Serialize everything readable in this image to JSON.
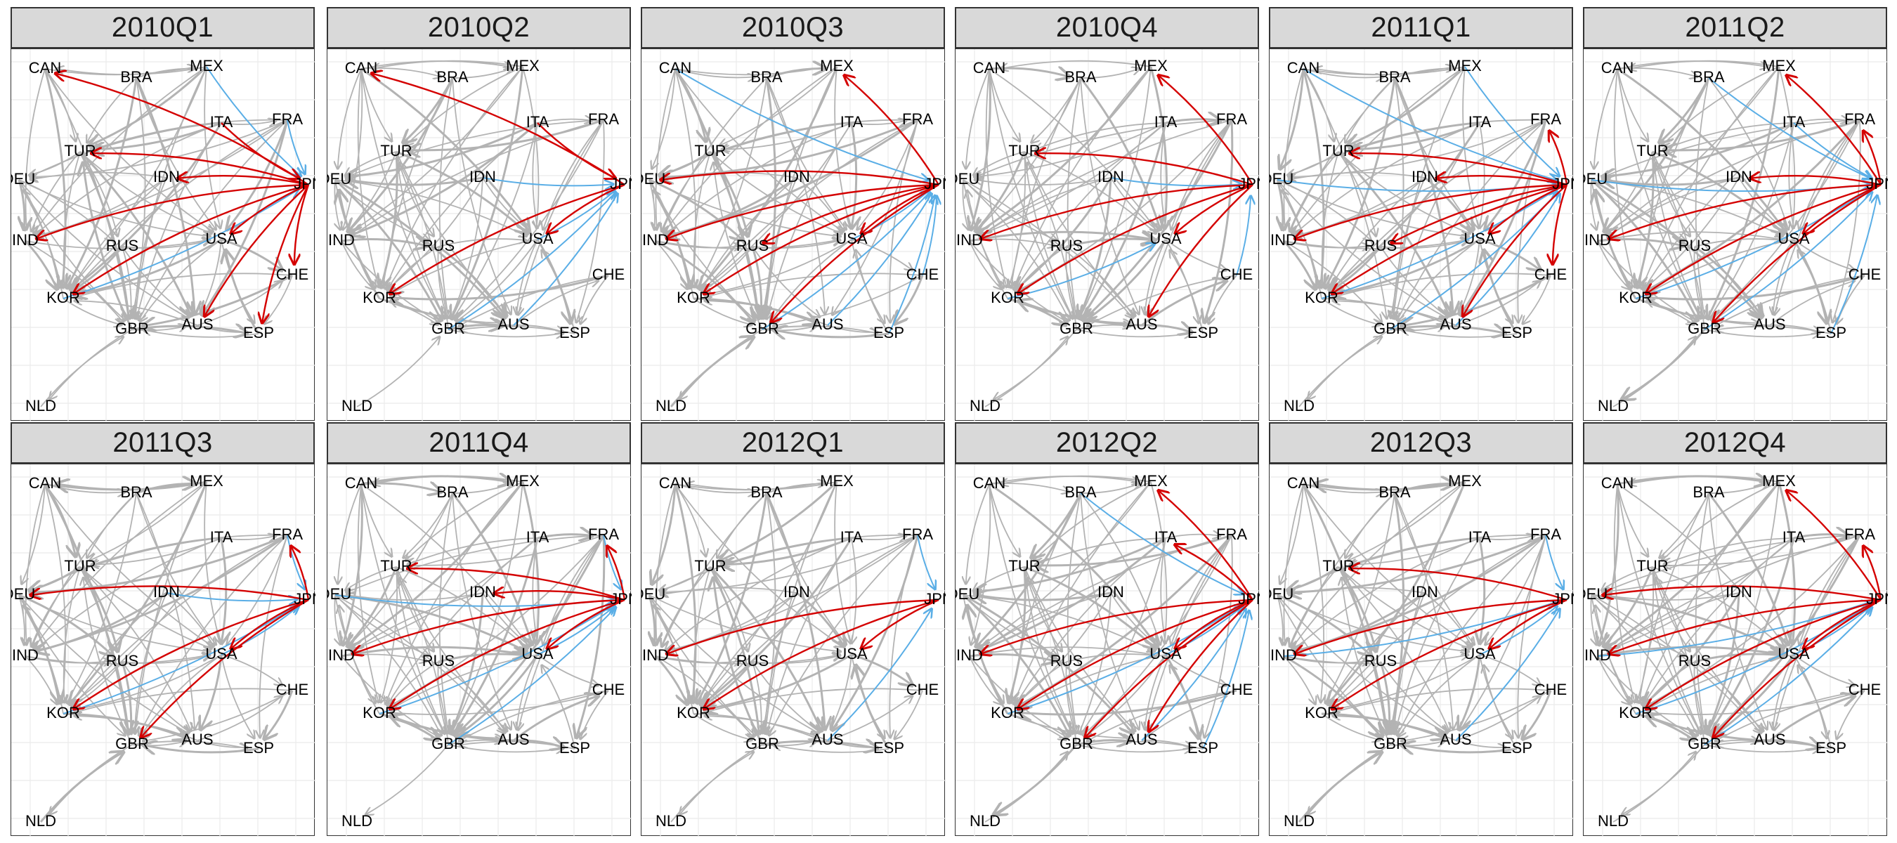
{
  "panels": [
    {
      "title": "2010Q1"
    },
    {
      "title": "2010Q2"
    },
    {
      "title": "2010Q3"
    },
    {
      "title": "2010Q4"
    },
    {
      "title": "2011Q1"
    },
    {
      "title": "2011Q2"
    },
    {
      "title": "2011Q3"
    },
    {
      "title": "2011Q4"
    },
    {
      "title": "2012Q1"
    },
    {
      "title": "2012Q2"
    },
    {
      "title": "2012Q3"
    },
    {
      "title": "2012Q4"
    }
  ],
  "nodes": [
    "CAN",
    "BRA",
    "MEX",
    "ITA",
    "FRA",
    "TUR",
    "IDN",
    "JPN",
    "DEU",
    "IND",
    "RUS",
    "USA",
    "CHE",
    "KOR",
    "GBR",
    "AUS",
    "ESP",
    "NLD"
  ],
  "colors": {
    "neutral_edge": "#b3b3b3",
    "positive_edge": "#d40000",
    "negative_edge": "#5aaee6",
    "grid": "#ebebeb",
    "header_bg": "#d9d9d9",
    "border": "#333333"
  },
  "chart_data": {
    "type": "network",
    "edge_categories": [
      "neutral",
      "red",
      "blue"
    ],
    "graphs": [
      {
        "panel": "2010Q1",
        "red": [
          [
            "JPN",
            "CAN"
          ],
          [
            "JPN",
            "TUR"
          ],
          [
            "JPN",
            "IND"
          ],
          [
            "JPN",
            "KOR"
          ],
          [
            "JPN",
            "AUS"
          ],
          [
            "JPN",
            "ESP"
          ],
          [
            "JPN",
            "CHE"
          ],
          [
            "JPN",
            "IDN"
          ],
          [
            "ITA",
            "JPN"
          ],
          [
            "JPN",
            "USA"
          ]
        ],
        "blue": [
          [
            "MEX",
            "JPN"
          ],
          [
            "KOR",
            "JPN"
          ],
          [
            "FRA",
            "JPN"
          ]
        ]
      },
      {
        "panel": "2010Q2",
        "red": [
          [
            "JPN",
            "CAN"
          ],
          [
            "JPN",
            "KOR"
          ],
          [
            "JPN",
            "USA"
          ],
          [
            "ITA",
            "JPN"
          ]
        ],
        "blue": [
          [
            "IDN",
            "JPN"
          ],
          [
            "GBR",
            "JPN"
          ],
          [
            "AUS",
            "JPN"
          ],
          [
            "USA",
            "JPN"
          ]
        ]
      },
      {
        "panel": "2010Q3",
        "red": [
          [
            "JPN",
            "MEX"
          ],
          [
            "JPN",
            "DEU"
          ],
          [
            "JPN",
            "IND"
          ],
          [
            "JPN",
            "KOR"
          ],
          [
            "JPN",
            "GBR"
          ],
          [
            "JPN",
            "USA"
          ],
          [
            "JPN",
            "RUS"
          ]
        ],
        "blue": [
          [
            "CAN",
            "JPN"
          ],
          [
            "USA",
            "JPN"
          ],
          [
            "AUS",
            "JPN"
          ],
          [
            "GBR",
            "JPN"
          ],
          [
            "ESP",
            "JPN"
          ],
          [
            "CHE",
            "JPN"
          ]
        ]
      },
      {
        "panel": "2010Q4",
        "red": [
          [
            "JPN",
            "MEX"
          ],
          [
            "JPN",
            "TUR"
          ],
          [
            "JPN",
            "IND"
          ],
          [
            "JPN",
            "KOR"
          ],
          [
            "JPN",
            "AUS"
          ],
          [
            "JPN",
            "USA"
          ]
        ],
        "blue": [
          [
            "IDN",
            "JPN"
          ],
          [
            "KOR",
            "USA"
          ],
          [
            "CHE",
            "JPN"
          ]
        ]
      },
      {
        "panel": "2011Q1",
        "red": [
          [
            "JPN",
            "FRA"
          ],
          [
            "JPN",
            "TUR"
          ],
          [
            "JPN",
            "IDN"
          ],
          [
            "JPN",
            "IND"
          ],
          [
            "JPN",
            "KOR"
          ],
          [
            "JPN",
            "USA"
          ],
          [
            "JPN",
            "AUS"
          ],
          [
            "JPN",
            "CHE"
          ],
          [
            "JPN",
            "RUS"
          ]
        ],
        "blue": [
          [
            "CAN",
            "JPN"
          ],
          [
            "MEX",
            "JPN"
          ],
          [
            "KOR",
            "JPN"
          ],
          [
            "GBR",
            "JPN"
          ],
          [
            "AUS",
            "JPN"
          ],
          [
            "DEU",
            "JPN"
          ]
        ]
      },
      {
        "panel": "2011Q2",
        "red": [
          [
            "JPN",
            "MEX"
          ],
          [
            "JPN",
            "FRA"
          ],
          [
            "JPN",
            "IDN"
          ],
          [
            "JPN",
            "IND"
          ],
          [
            "JPN",
            "KOR"
          ],
          [
            "JPN",
            "GBR"
          ],
          [
            "JPN",
            "USA"
          ]
        ],
        "blue": [
          [
            "BRA",
            "JPN"
          ],
          [
            "DEU",
            "JPN"
          ],
          [
            "GBR",
            "JPN"
          ],
          [
            "KOR",
            "JPN"
          ],
          [
            "ESP",
            "JPN"
          ],
          [
            "ITA",
            "JPN"
          ]
        ]
      },
      {
        "panel": "2011Q3",
        "red": [
          [
            "JPN",
            "FRA"
          ],
          [
            "JPN",
            "DEU"
          ],
          [
            "JPN",
            "KOR"
          ],
          [
            "JPN",
            "GBR"
          ],
          [
            "JPN",
            "USA"
          ]
        ],
        "blue": [
          [
            "FRA",
            "JPN"
          ],
          [
            "KOR",
            "JPN"
          ],
          [
            "USA",
            "JPN"
          ],
          [
            "IDN",
            "JPN"
          ]
        ]
      },
      {
        "panel": "2011Q4",
        "red": [
          [
            "JPN",
            "FRA"
          ],
          [
            "JPN",
            "TUR"
          ],
          [
            "JPN",
            "IND"
          ],
          [
            "JPN",
            "KOR"
          ],
          [
            "JPN",
            "USA"
          ],
          [
            "JPN",
            "IDN"
          ]
        ],
        "blue": [
          [
            "FRA",
            "JPN"
          ],
          [
            "DEU",
            "JPN"
          ],
          [
            "GBR",
            "JPN"
          ],
          [
            "USA",
            "JPN"
          ],
          [
            "KOR",
            "JPN"
          ]
        ]
      },
      {
        "panel": "2012Q1",
        "red": [
          [
            "JPN",
            "IND"
          ],
          [
            "JPN",
            "KOR"
          ],
          [
            "JPN",
            "USA"
          ]
        ],
        "blue": [
          [
            "FRA",
            "JPN"
          ],
          [
            "AUS",
            "JPN"
          ]
        ]
      },
      {
        "panel": "2012Q2",
        "red": [
          [
            "JPN",
            "MEX"
          ],
          [
            "JPN",
            "ITA"
          ],
          [
            "JPN",
            "IND"
          ],
          [
            "JPN",
            "KOR"
          ],
          [
            "JPN",
            "GBR"
          ],
          [
            "JPN",
            "USA"
          ],
          [
            "JPN",
            "AUS"
          ]
        ],
        "blue": [
          [
            "BRA",
            "JPN"
          ],
          [
            "AUS",
            "JPN"
          ],
          [
            "ESP",
            "JPN"
          ],
          [
            "KOR",
            "JPN"
          ],
          [
            "USA",
            "JPN"
          ]
        ]
      },
      {
        "panel": "2012Q3",
        "red": [
          [
            "JPN",
            "TUR"
          ],
          [
            "JPN",
            "IND"
          ],
          [
            "JPN",
            "KOR"
          ],
          [
            "JPN",
            "USA"
          ]
        ],
        "blue": [
          [
            "FRA",
            "JPN"
          ],
          [
            "IND",
            "JPN"
          ],
          [
            "AUS",
            "JPN"
          ],
          [
            "USA",
            "JPN"
          ]
        ]
      },
      {
        "panel": "2012Q4",
        "red": [
          [
            "JPN",
            "MEX"
          ],
          [
            "JPN",
            "FRA"
          ],
          [
            "JPN",
            "DEU"
          ],
          [
            "JPN",
            "IND"
          ],
          [
            "JPN",
            "KOR"
          ],
          [
            "JPN",
            "GBR"
          ],
          [
            "JPN",
            "USA"
          ]
        ],
        "blue": [
          [
            "IND",
            "JPN"
          ],
          [
            "KOR",
            "JPN"
          ],
          [
            "USA",
            "JPN"
          ],
          [
            "GBR",
            "JPN"
          ]
        ]
      }
    ]
  }
}
